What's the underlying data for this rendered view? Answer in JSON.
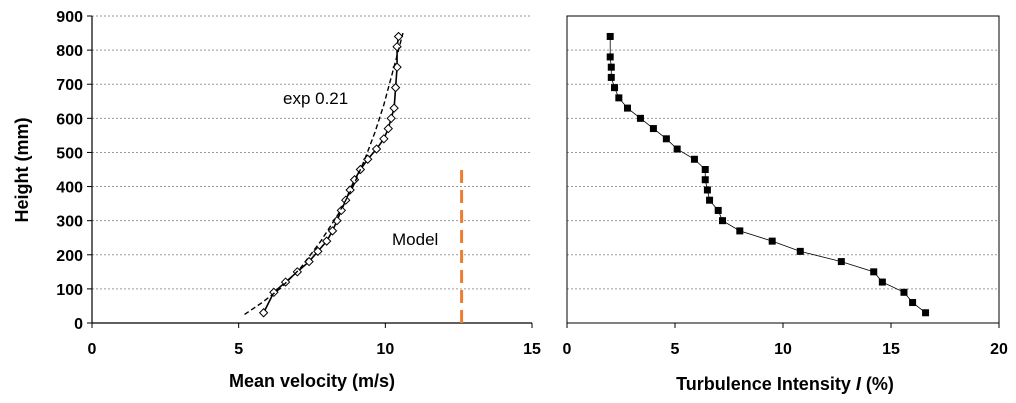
{
  "chart_data": [
    {
      "type": "line",
      "xlabel": "Mean velocity (m/s)",
      "ylabel": "Height (mm)",
      "xlim": [
        0,
        15
      ],
      "ylim": [
        0,
        900
      ],
      "xticks": [
        "0",
        "5",
        "10",
        "15"
      ],
      "yticks": [
        "0",
        "100",
        "200",
        "300",
        "400",
        "500",
        "600",
        "700",
        "800",
        "900"
      ],
      "grid": "horizontal-dashed",
      "series": [
        {
          "marker": "diamond-open",
          "color": "#000000",
          "x": [
            5.85,
            6.2,
            6.6,
            7.0,
            7.4,
            7.7,
            8.0,
            8.2,
            8.35,
            8.5,
            8.65,
            8.8,
            8.95,
            9.15,
            9.4,
            9.7,
            9.95,
            10.1,
            10.2,
            10.3,
            10.35,
            10.4,
            10.4,
            10.45
          ],
          "y": [
            30,
            90,
            120,
            150,
            180,
            210,
            240,
            270,
            300,
            330,
            360,
            390,
            420,
            450,
            480,
            510,
            540,
            570,
            600,
            630,
            690,
            750,
            810,
            840
          ]
        },
        {
          "style": "dashed",
          "color": "#000000",
          "x": [
            5.2,
            5.8,
            6.4,
            7.1,
            7.8,
            8.4,
            8.9,
            9.3,
            9.65,
            9.95,
            10.2,
            10.45,
            10.6
          ],
          "y": [
            25,
            60,
            100,
            160,
            240,
            320,
            400,
            480,
            560,
            640,
            720,
            800,
            850
          ]
        },
        {
          "style": "dashed",
          "color": "#ED7D31",
          "x": [
            12.6,
            12.6
          ],
          "y": [
            0,
            460
          ]
        }
      ],
      "annotations": [
        "exp 0.21",
        "Model"
      ]
    },
    {
      "type": "line",
      "xlabel_prefix": "Turbulence Intensity ",
      "xlabel_symbol": "I",
      "xlabel_suffix": " (%)",
      "xlim": [
        0,
        20
      ],
      "ylim": [
        0,
        900
      ],
      "xticks": [
        "0",
        "5",
        "10",
        "15",
        "20"
      ],
      "grid": "horizontal-dashed",
      "series": [
        {
          "marker": "square-filled",
          "color": "#000000",
          "x": [
            16.6,
            16.0,
            15.6,
            14.6,
            14.2,
            12.7,
            10.8,
            9.5,
            8.0,
            7.2,
            7.0,
            6.6,
            6.5,
            6.4,
            6.4,
            5.9,
            5.1,
            4.6,
            4.0,
            3.4,
            2.8,
            2.4,
            2.2,
            2.05,
            2.05,
            2.0,
            2.0
          ],
          "y": [
            30,
            60,
            90,
            120,
            150,
            180,
            210,
            240,
            270,
            300,
            330,
            360,
            390,
            420,
            450,
            480,
            510,
            540,
            570,
            600,
            630,
            660,
            690,
            720,
            750,
            780,
            840
          ]
        }
      ]
    }
  ]
}
